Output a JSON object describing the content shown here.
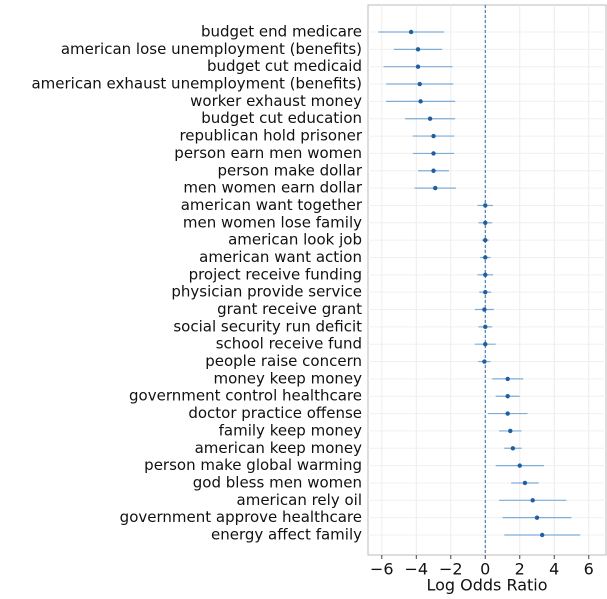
{
  "chart_data": {
    "type": "errorbar",
    "orientation": "horizontal",
    "xlabel": "Log Odds Ratio",
    "categories": [
      "budget end medicare",
      "american lose unemployment (benefits)",
      "budget cut medicaid",
      "american exhaust unemployment (benefits)",
      "worker exhaust money",
      "budget cut education",
      "republican hold prisoner",
      "person earn men women",
      "person make dollar",
      "men women earn dollar",
      "american want together",
      "men women lose family",
      "american look job",
      "american want action",
      "project receive funding",
      "physician provide service",
      "grant receive grant",
      "social security run deficit",
      "school receive fund",
      "people raise concern",
      "money keep money",
      "government control healthcare",
      "doctor practice offense",
      "family keep money",
      "american keep money",
      "person make global warming",
      "god bless men women",
      "american rely oil",
      "government approve healthcare",
      "energy affect family"
    ],
    "values": [
      -4.3,
      -3.9,
      -3.9,
      -3.8,
      -3.75,
      -3.2,
      -3.0,
      -3.0,
      -3.0,
      -2.9,
      0.0,
      0.0,
      0.0,
      0.0,
      0.0,
      0.0,
      -0.05,
      0.0,
      0.0,
      -0.05,
      1.3,
      1.3,
      1.3,
      1.45,
      1.6,
      2.0,
      2.3,
      2.75,
      3.0,
      3.3
    ],
    "errors": [
      1.9,
      1.4,
      2.0,
      1.95,
      2.0,
      1.45,
      1.2,
      1.2,
      0.9,
      1.2,
      0.45,
      0.4,
      0.2,
      0.3,
      0.45,
      0.35,
      0.55,
      0.4,
      0.6,
      0.35,
      0.9,
      0.7,
      1.15,
      0.65,
      0.5,
      1.4,
      0.8,
      1.95,
      2.0,
      2.2
    ],
    "color": "#1f5fa0",
    "error_color": "#7eaed6",
    "xlim": [
      -6.8,
      7.0
    ],
    "xticks": [
      {
        "value": -6,
        "label": "−6"
      },
      {
        "value": -4,
        "label": "−4"
      },
      {
        "value": -2,
        "label": "−2"
      },
      0,
      2,
      4,
      6
    ],
    "reference_line": 0,
    "grid": true
  }
}
